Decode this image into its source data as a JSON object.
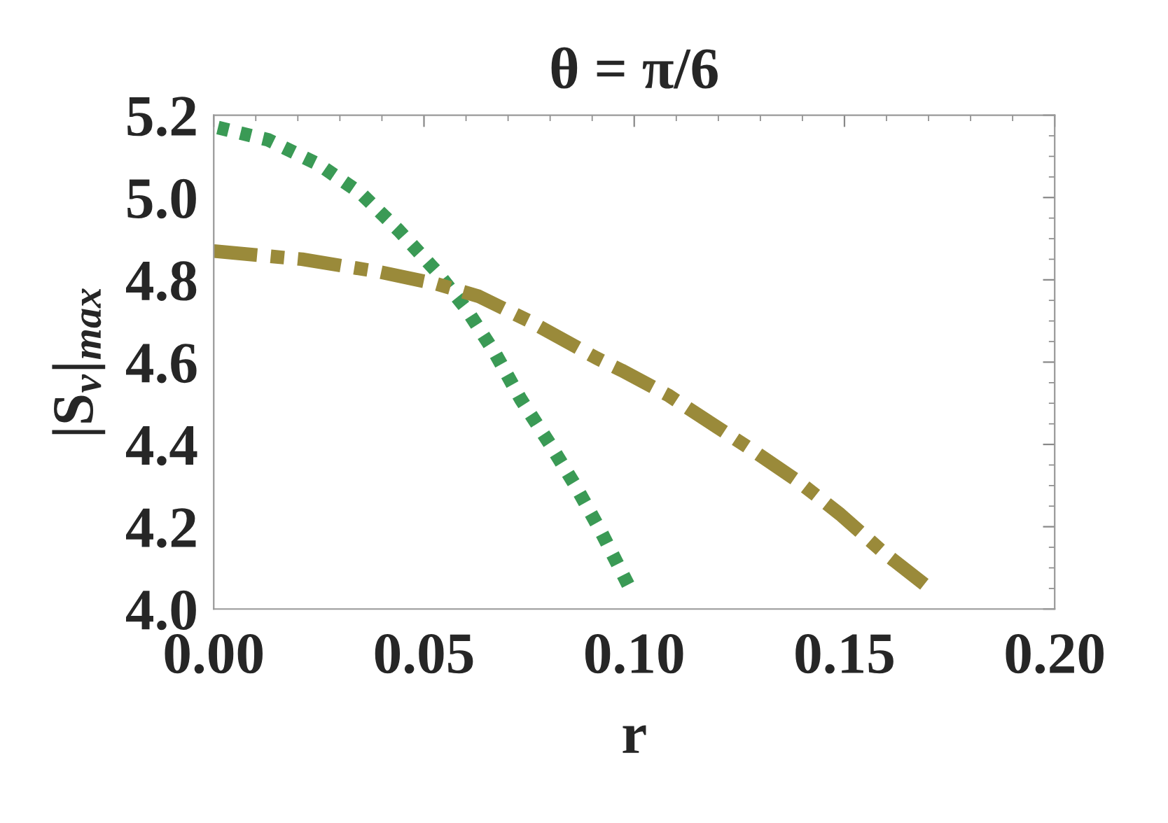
{
  "chart_data": {
    "type": "line",
    "title": "θ = π/6",
    "xlabel": "r",
    "ylabel": "|S$_{v}$|$_{max}$",
    "xlim": [
      0,
      0.2
    ],
    "xticks": [
      {
        "value": 0,
        "label": "0.00"
      },
      0.05,
      {
        "value": 0.1,
        "label": "0.10"
      },
      0.15,
      {
        "value": 0.2,
        "label": "0.20"
      }
    ],
    "ylim": [
      4.0,
      5.2
    ],
    "yticks": [
      {
        "value": 4.0,
        "label": "4.0"
      },
      4.2,
      4.4,
      4.6,
      4.8,
      {
        "value": 5.0,
        "label": "5.0"
      },
      5.2
    ],
    "grid": false,
    "series": [
      {
        "color": "#3a9a55",
        "line_style": "dotted",
        "x": [
          0.001,
          0.013,
          0.025,
          0.035,
          0.044,
          0.053,
          0.06,
          0.067,
          0.073,
          0.08,
          0.086,
          0.092,
          0.099
        ],
        "values": [
          5.17,
          5.14,
          5.08,
          5.01,
          4.92,
          4.82,
          4.73,
          4.62,
          4.51,
          4.4,
          4.3,
          4.19,
          4.05
        ]
      },
      {
        "color": "#9a8a3a",
        "line_style": "dashed",
        "x": [
          0,
          0.021,
          0.039,
          0.053,
          0.063,
          0.075,
          0.091,
          0.097,
          0.108,
          0.123,
          0.129,
          0.139,
          0.149,
          0.159,
          0.169
        ],
        "values": [
          4.87,
          4.85,
          4.82,
          4.79,
          4.76,
          4.7,
          4.61,
          4.58,
          4.52,
          4.42,
          4.38,
          4.31,
          4.23,
          4.14,
          4.06
        ]
      }
    ]
  }
}
